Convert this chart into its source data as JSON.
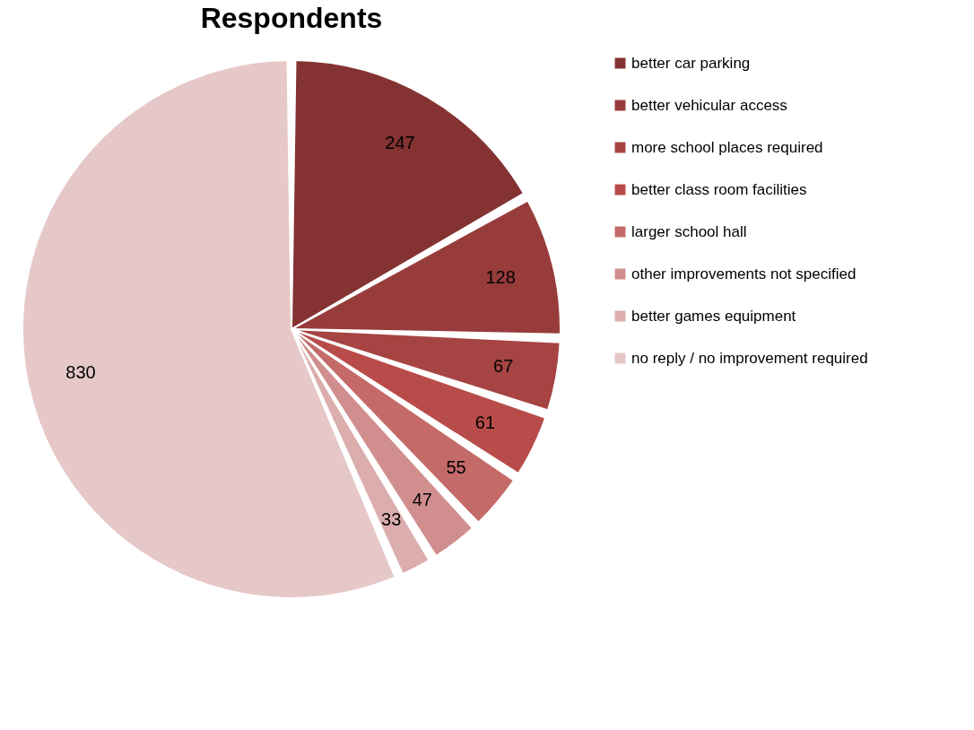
{
  "chart_data": {
    "type": "pie",
    "title": "Respondents",
    "categories": [
      "better car parking",
      "better vehicular access",
      "more school places required",
      "better class room facilities",
      "larger school hall",
      "other improvements not specified",
      "better games equipment",
      "no reply / no improvement required"
    ],
    "values": [
      247,
      128,
      67,
      61,
      55,
      47,
      33,
      830
    ],
    "colors": [
      "#843232",
      "#973c3b",
      "#a54442",
      "#b84c4a",
      "#c46a69",
      "#d08f8e",
      "#dbadad",
      "#e6c8c8"
    ],
    "data_labels": true,
    "legend": "right"
  }
}
